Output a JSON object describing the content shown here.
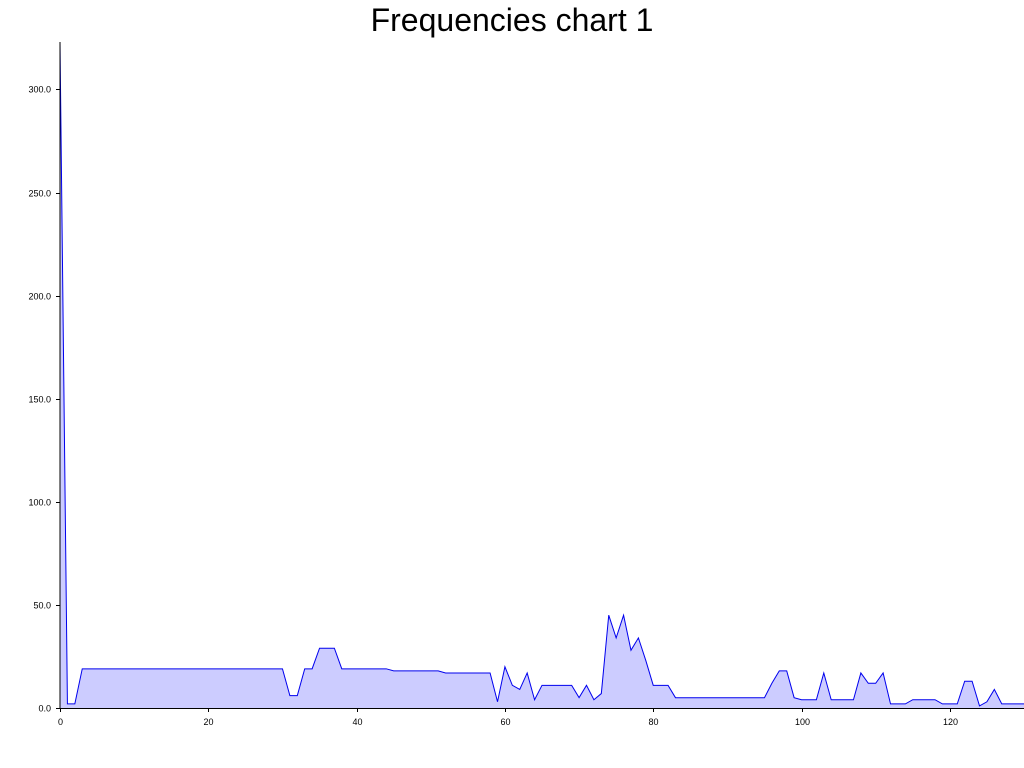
{
  "chart_data": {
    "type": "area",
    "title": "Frequencies chart 1",
    "xlabel": "",
    "ylabel": "",
    "xlim": [
      0,
      130
    ],
    "ylim": [
      0,
      323
    ],
    "x_ticks": [
      0,
      20,
      40,
      60,
      80,
      100,
      120
    ],
    "x_tick_labels": [
      "0",
      "20",
      "40",
      "60",
      "80",
      "100",
      "120"
    ],
    "y_ticks": [
      0,
      50,
      100,
      150,
      200,
      250,
      300
    ],
    "y_tick_labels": [
      "0.0",
      "50.0",
      "100.0",
      "150.0",
      "200.0",
      "250.0",
      "300.0"
    ],
    "grid": false,
    "colors": {
      "line": "#0000ee",
      "fill": "#ccccff"
    },
    "series": [
      {
        "x": [
          0,
          1,
          2,
          3,
          4,
          5,
          10,
          15,
          20,
          25,
          29,
          30,
          31,
          32,
          33,
          34,
          35,
          36,
          37,
          38,
          40,
          42,
          44,
          45,
          48,
          50,
          51,
          52,
          55,
          58,
          59,
          60,
          61,
          62,
          63,
          64,
          65,
          66,
          67,
          68,
          69,
          70,
          71,
          72,
          73,
          74,
          75,
          76,
          77,
          78,
          79,
          80,
          81,
          82,
          83,
          84,
          85,
          90,
          94,
          95,
          96,
          97,
          98,
          99,
          100,
          101,
          102,
          103,
          104,
          105,
          106,
          107,
          108,
          109,
          110,
          111,
          112,
          113,
          114,
          115,
          116,
          117,
          118,
          119,
          120,
          121,
          122,
          123,
          124,
          125,
          126,
          127,
          128,
          129,
          130
        ],
        "values": [
          323,
          2,
          2,
          19,
          19,
          19,
          19,
          19,
          19,
          19,
          19,
          19,
          6,
          6,
          19,
          19,
          29,
          29,
          29,
          19,
          19,
          19,
          19,
          18,
          18,
          18,
          18,
          17,
          17,
          17,
          3,
          20,
          11,
          9,
          17,
          4,
          11,
          11,
          11,
          11,
          11,
          5,
          11,
          4,
          7,
          45,
          34,
          45,
          28,
          34,
          23,
          11,
          11,
          11,
          5,
          5,
          5,
          5,
          5,
          5,
          12,
          18,
          18,
          5,
          4,
          4,
          4,
          17,
          4,
          4,
          4,
          4,
          17,
          12,
          12,
          17,
          2,
          2,
          2,
          4,
          4,
          4,
          4,
          2,
          2,
          2,
          13,
          13,
          1,
          3,
          9,
          2,
          2,
          2,
          2
        ]
      }
    ]
  }
}
